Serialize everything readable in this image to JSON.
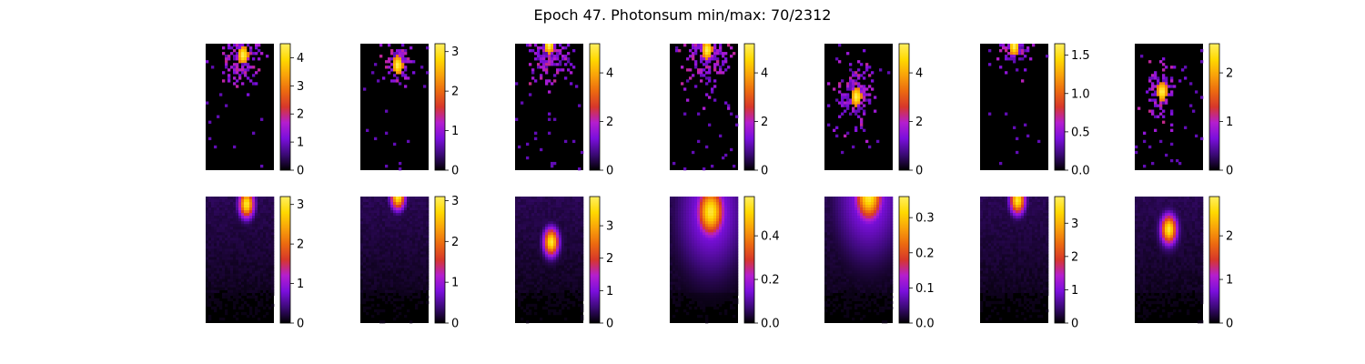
{
  "figure": {
    "title": "Epoch 47. Photonsum min/max: 70/2312"
  },
  "colormap": [
    "#000000",
    "#3c0a78",
    "#7a0fdc",
    "#b41ecf",
    "#d7372b",
    "#ec6a10",
    "#f9a20a",
    "#ffd900",
    "#ffef60"
  ],
  "chart_data": [
    {
      "type": "heatmap",
      "row": "top",
      "col": 1,
      "image": "sparse",
      "blob": [
        0.55,
        0.09
      ],
      "spread": 0.35,
      "clim": [
        0,
        4.5
      ],
      "colorbar_ticks": [
        "0",
        "1",
        "2",
        "3",
        "4"
      ],
      "colorbar_values": [
        0,
        1,
        2,
        3,
        4
      ]
    },
    {
      "type": "heatmap",
      "row": "top",
      "col": 2,
      "image": "sparse",
      "blob": [
        0.55,
        0.17
      ],
      "spread": 0.25,
      "clim": [
        0,
        3.2
      ],
      "colorbar_ticks": [
        "0",
        "1",
        "2",
        "3"
      ],
      "colorbar_values": [
        0,
        1,
        2,
        3
      ]
    },
    {
      "type": "heatmap",
      "row": "top",
      "col": 3,
      "image": "sparse",
      "blob": [
        0.5,
        0.01
      ],
      "spread": 0.45,
      "clim": [
        0,
        5.2
      ],
      "colorbar_ticks": [
        "0",
        "2",
        "4"
      ],
      "colorbar_values": [
        0,
        2,
        4
      ]
    },
    {
      "type": "heatmap",
      "row": "top",
      "col": 4,
      "image": "sparse",
      "blob": [
        0.55,
        0.05
      ],
      "spread": 0.45,
      "clim": [
        0,
        5.2
      ],
      "colorbar_ticks": [
        "0",
        "2",
        "4"
      ],
      "colorbar_values": [
        0,
        2,
        4
      ]
    },
    {
      "type": "heatmap",
      "row": "top",
      "col": 5,
      "image": "sparse",
      "blob": [
        0.47,
        0.42
      ],
      "spread": 0.35,
      "clim": [
        0,
        5.2
      ],
      "colorbar_ticks": [
        "0",
        "2",
        "4"
      ],
      "colorbar_values": [
        0,
        2,
        4
      ]
    },
    {
      "type": "heatmap",
      "row": "top",
      "col": 6,
      "image": "sparse",
      "blob": [
        0.5,
        0.02
      ],
      "spread": 0.3,
      "clim": [
        0,
        1.65
      ],
      "colorbar_ticks": [
        "0.0",
        "0.5",
        "1.0",
        "1.5"
      ],
      "colorbar_values": [
        0,
        0.5,
        1.0,
        1.5
      ]
    },
    {
      "type": "heatmap",
      "row": "top",
      "col": 7,
      "image": "sparse",
      "blob": [
        0.4,
        0.38
      ],
      "spread": 0.3,
      "clim": [
        0,
        2.6
      ],
      "colorbar_ticks": [
        "0",
        "1",
        "2"
      ],
      "colorbar_values": [
        0,
        1,
        2
      ]
    },
    {
      "type": "heatmap",
      "row": "bottom",
      "col": 1,
      "image": "smooth",
      "blob": [
        0.6,
        0.06
      ],
      "spread": 0.22,
      "clim": [
        0,
        3.2
      ],
      "colorbar_ticks": [
        "0",
        "1",
        "2",
        "3"
      ],
      "colorbar_values": [
        0,
        1,
        2,
        3
      ]
    },
    {
      "type": "heatmap",
      "row": "bottom",
      "col": 2,
      "image": "smooth",
      "blob": [
        0.55,
        0.0
      ],
      "spread": 0.2,
      "clim": [
        0,
        3.1
      ],
      "colorbar_ticks": [
        "0",
        "1",
        "2",
        "3"
      ],
      "colorbar_values": [
        0,
        1,
        2,
        3
      ]
    },
    {
      "type": "heatmap",
      "row": "bottom",
      "col": 3,
      "image": "smooth",
      "blob": [
        0.53,
        0.36
      ],
      "spread": 0.22,
      "clim": [
        0,
        3.9
      ],
      "colorbar_ticks": [
        "0",
        "1",
        "2",
        "3"
      ],
      "colorbar_values": [
        0,
        1,
        2,
        3
      ]
    },
    {
      "type": "heatmap",
      "row": "bottom",
      "col": 4,
      "image": "smooth",
      "blob": [
        0.6,
        0.12
      ],
      "spread": 0.7,
      "clim": [
        0,
        0.58
      ],
      "colorbar_ticks": [
        "0.0",
        "0.2",
        "0.4"
      ],
      "colorbar_values": [
        0,
        0.2,
        0.4
      ]
    },
    {
      "type": "heatmap",
      "row": "bottom",
      "col": 5,
      "image": "smooth",
      "blob": [
        0.65,
        0.0
      ],
      "spread": 0.7,
      "clim": [
        0,
        0.36
      ],
      "colorbar_ticks": [
        "0.0",
        "0.1",
        "0.2",
        "0.3"
      ],
      "colorbar_values": [
        0,
        0.1,
        0.2,
        0.3
      ]
    },
    {
      "type": "heatmap",
      "row": "bottom",
      "col": 6,
      "image": "smooth",
      "blob": [
        0.55,
        0.03
      ],
      "spread": 0.22,
      "clim": [
        0,
        3.8
      ],
      "colorbar_ticks": [
        "0",
        "1",
        "2",
        "3"
      ],
      "colorbar_values": [
        0,
        1,
        2,
        3
      ]
    },
    {
      "type": "heatmap",
      "row": "bottom",
      "col": 7,
      "image": "smooth",
      "blob": [
        0.5,
        0.26
      ],
      "spread": 0.25,
      "clim": [
        0,
        2.9
      ],
      "colorbar_ticks": [
        "0",
        "1",
        "2"
      ],
      "colorbar_values": [
        0,
        1,
        2
      ]
    }
  ]
}
